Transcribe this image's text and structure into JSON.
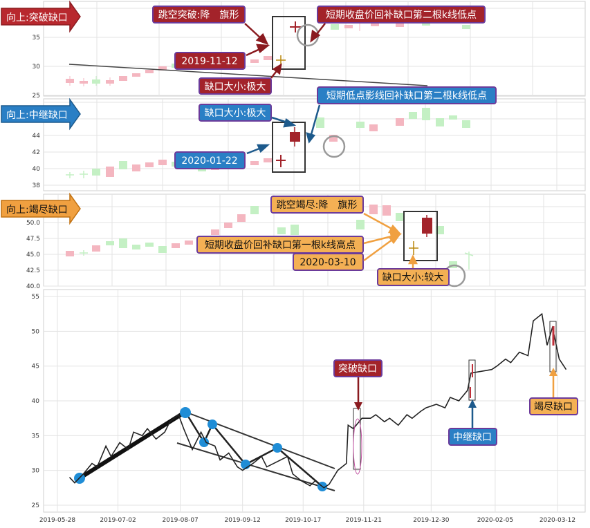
{
  "panels": [
    {
      "id": "p1",
      "tag": "向上:突破缺口",
      "tag_color": "#b8282e",
      "yticks": [
        "25",
        "30",
        "35"
      ],
      "notes": [
        "跳空突破:降　旗形",
        "短期收盘价回补缺口第二根k线低点",
        "2019-11-12",
        "缺口大小:极大"
      ]
    },
    {
      "id": "p2",
      "tag": "向上:中继缺口",
      "tag_color": "#2a7fc5",
      "yticks": [
        "38",
        "40",
        "42",
        "44"
      ],
      "notes": [
        "缺口大小:极大",
        "短期低点影线回补缺口第二根k线低点",
        "2020-01-22"
      ]
    },
    {
      "id": "p3",
      "tag": "向上:竭尽缺口",
      "tag_color": "#f0a040",
      "yticks": [
        "40.0",
        "42.5",
        "45.0",
        "47.5",
        "50.0"
      ],
      "notes": [
        "跳空竭尽:降　旗形",
        "短期收盘价回补缺口第一根k线高点",
        "2020-03-10",
        "缺口大小:较大"
      ]
    }
  ],
  "chart_data": {
    "type": "line",
    "title": "",
    "xlabel": "",
    "ylabel": "",
    "x_ticks": [
      "2019-05-28",
      "2019-07-02",
      "2019-08-07",
      "2019-09-12",
      "2019-10-17",
      "2019-11-21",
      "2019-12-30",
      "2020-02-05",
      "2020-03-12"
    ],
    "y_ticks": [
      "25",
      "30",
      "35",
      "40",
      "45",
      "50",
      "55"
    ],
    "ylim": [
      24,
      56
    ],
    "grid": true,
    "series": [
      {
        "x": [
          "2019-06-04",
          "2019-06-07",
          "2019-06-12",
          "2019-06-17",
          "2019-06-20",
          "2019-06-25",
          "2019-06-28",
          "2019-07-03",
          "2019-07-08",
          "2019-07-11",
          "2019-07-16",
          "2019-07-19",
          "2019-07-24",
          "2019-07-29",
          "2019-08-01",
          "2019-08-06",
          "2019-08-09",
          "2019-08-14",
          "2019-08-19",
          "2019-08-22",
          "2019-08-27",
          "2019-08-30",
          "2019-09-04",
          "2019-09-09",
          "2019-09-12",
          "2019-09-18",
          "2019-09-23",
          "2019-09-26",
          "2019-10-08",
          "2019-10-11",
          "2019-10-16",
          "2019-10-21",
          "2019-10-24",
          "2019-10-29",
          "2019-11-01",
          "2019-11-06",
          "2019-11-11",
          "2019-11-12",
          "2019-11-15",
          "2019-11-20",
          "2019-11-25",
          "2019-11-28",
          "2019-12-03",
          "2019-12-06",
          "2019-12-11",
          "2019-12-16",
          "2019-12-19",
          "2019-12-24",
          "2019-12-27",
          "2020-01-02",
          "2020-01-07",
          "2020-01-10",
          "2020-01-15",
          "2020-01-20",
          "2020-01-22",
          "2020-02-03",
          "2020-02-06",
          "2020-02-11",
          "2020-02-14",
          "2020-02-19",
          "2020-02-24",
          "2020-02-27",
          "2020-03-03",
          "2020-03-06",
          "2020-03-09",
          "2020-03-10",
          "2020-03-13",
          "2020-03-17"
        ],
        "y": [
          29.0,
          28.2,
          29.5,
          31.0,
          30.5,
          33.5,
          32.0,
          34.0,
          33.0,
          35.5,
          35.0,
          36.0,
          34.5,
          35.5,
          37.0,
          38.0,
          36.0,
          33.0,
          35.5,
          34.0,
          33.5,
          31.5,
          32.5,
          30.5,
          30.0,
          31.0,
          32.0,
          30.5,
          32.0,
          29.5,
          28.5,
          27.8,
          28.5,
          27.5,
          28.0,
          30.0,
          31.0,
          36.5,
          36.0,
          37.5,
          37.5,
          38.0,
          37.0,
          37.5,
          36.5,
          38.0,
          37.5,
          38.5,
          39.0,
          39.5,
          39.0,
          40.5,
          40.0,
          41.5,
          44.0,
          44.5,
          45.0,
          46.0,
          45.5,
          47.0,
          46.5,
          51.5,
          52.5,
          48.0,
          50.5,
          49.5,
          46.0,
          44.5
        ]
      }
    ],
    "annotations": [
      "突破缺口",
      "中继缺口",
      "竭尽缺口"
    ]
  }
}
